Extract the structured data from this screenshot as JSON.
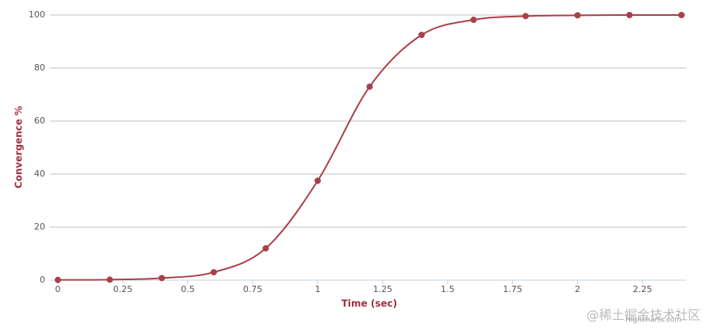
{
  "chart_data": {
    "type": "line",
    "x_label": "Time (sec)",
    "y_label": "Convergence %",
    "x": [
      0,
      0.2,
      0.4,
      0.6,
      0.8,
      1.0,
      1.2,
      1.4,
      1.6,
      1.8,
      2.0,
      2.2,
      2.4
    ],
    "series": [
      {
        "name": "Convergence",
        "color": "#a8404b",
        "values": [
          0.1,
          0.2,
          0.8,
          3,
          12,
          37.5,
          73,
          92.5,
          98.2,
          99.6,
          99.9,
          100,
          100
        ]
      }
    ],
    "xlim": [
      0,
      2.4
    ],
    "xticks": [
      0,
      0.25,
      0.5,
      0.75,
      1,
      1.25,
      1.5,
      1.75,
      2,
      2.25
    ],
    "ylim": [
      0,
      100
    ],
    "yticks": [
      0,
      20,
      40,
      60,
      80,
      100
    ],
    "grid": true,
    "smooth": true,
    "credits": "Highcharts.com",
    "watermark": "@稀土掘金技术社区"
  }
}
